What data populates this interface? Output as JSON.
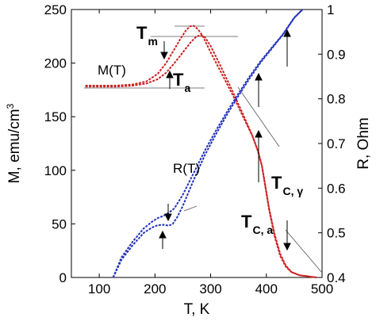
{
  "chart_data": {
    "type": "line",
    "xlabel": "T, K",
    "ylabel_left": "M, emu/cm",
    "ylabel_left_superscript": "3",
    "ylabel_right": "R, Ohm",
    "xlim": [
      50,
      500
    ],
    "ylim_left": [
      0,
      250
    ],
    "ylim_right": [
      0.4,
      1.0
    ],
    "x_ticks": [
      100,
      200,
      300,
      400,
      500
    ],
    "y_ticks_left": [
      0,
      50,
      100,
      150,
      200,
      250
    ],
    "y_ticks_right": [
      0.4,
      0.5,
      0.6,
      0.7,
      0.8,
      0.9,
      1
    ],
    "y_tick_labels_right": [
      "0.4",
      "0.5",
      "0.6",
      "0.7",
      "0.8",
      "0.9",
      "1"
    ],
    "grid": false,
    "series": [
      {
        "name": "M(T)",
        "axis": "left",
        "color": "#cc2222",
        "branches": [
          {
            "x": [
              75,
              100,
              130,
              160,
              185,
              205,
              220,
              235,
              245,
              255,
              262,
              268,
              272,
              278,
              285,
              300,
              320,
              340,
              360,
              375,
              385,
              392,
              398,
              405,
              415,
              425,
              435,
              445,
              460,
              475,
              490
            ],
            "y": [
              179,
              179,
              179,
              180,
              183,
              190,
              200,
              213,
              222,
              230,
              234,
              235,
              234,
              231,
              226,
              210,
              190,
              170,
              148,
              132,
              118,
              104,
              85,
              63,
              38,
              20,
              10,
              5,
              2,
              1,
              0
            ]
          },
          {
            "x": [
              75,
              100,
              130,
              160,
              185,
              205,
              220,
              235,
              250,
              265,
              275,
              282,
              290,
              300,
              320,
              340,
              360,
              375,
              385,
              392,
              398,
              405,
              415,
              425,
              435,
              445,
              460,
              475,
              490
            ],
            "y": [
              178,
              178,
              178,
              179,
              181,
              185,
              191,
              200,
              210,
              220,
              225,
              226,
              224,
              216,
              195,
              173,
              150,
              132,
              118,
              104,
              86,
              64,
              40,
              22,
              11,
              5,
              2,
              1,
              0
            ]
          }
        ]
      },
      {
        "name": "R(T)",
        "axis": "right",
        "color": "#2233bb",
        "branches": [
          {
            "x": [
              125,
              140,
              160,
              180,
              195,
              205,
              215,
              225,
              235,
              250,
              270,
              290,
              310,
              330,
              350,
              370,
              390,
              410,
              430,
              450,
              465
            ],
            "y": [
              0.4,
              0.445,
              0.48,
              0.51,
              0.525,
              0.533,
              0.538,
              0.545,
              0.555,
              0.585,
              0.635,
              0.685,
              0.73,
              0.772,
              0.812,
              0.85,
              0.885,
              0.915,
              0.945,
              0.982,
              1.0
            ]
          },
          {
            "x": [
              125,
              140,
              160,
              180,
              195,
              205,
              215,
              225,
              232,
              240,
              250,
              270,
              290,
              310,
              330,
              350,
              370,
              390,
              410,
              430,
              450,
              465
            ],
            "y": [
              0.4,
              0.44,
              0.472,
              0.5,
              0.512,
              0.517,
              0.518,
              0.516,
              0.52,
              0.535,
              0.56,
              0.62,
              0.675,
              0.722,
              0.766,
              0.807,
              0.846,
              0.882,
              0.913,
              0.944,
              0.981,
              1.0
            ]
          }
        ]
      }
    ],
    "annotations": {
      "M_label": "M(T)",
      "R_label": "R(T)",
      "Tm_main": "T",
      "Tm_sub": "m",
      "Ta_main": "T",
      "Ta_sub": "a",
      "TCa_main": "T",
      "TCa_sub": "C, a",
      "TCg_main": "T",
      "TCg_sub": "C, γ"
    }
  }
}
